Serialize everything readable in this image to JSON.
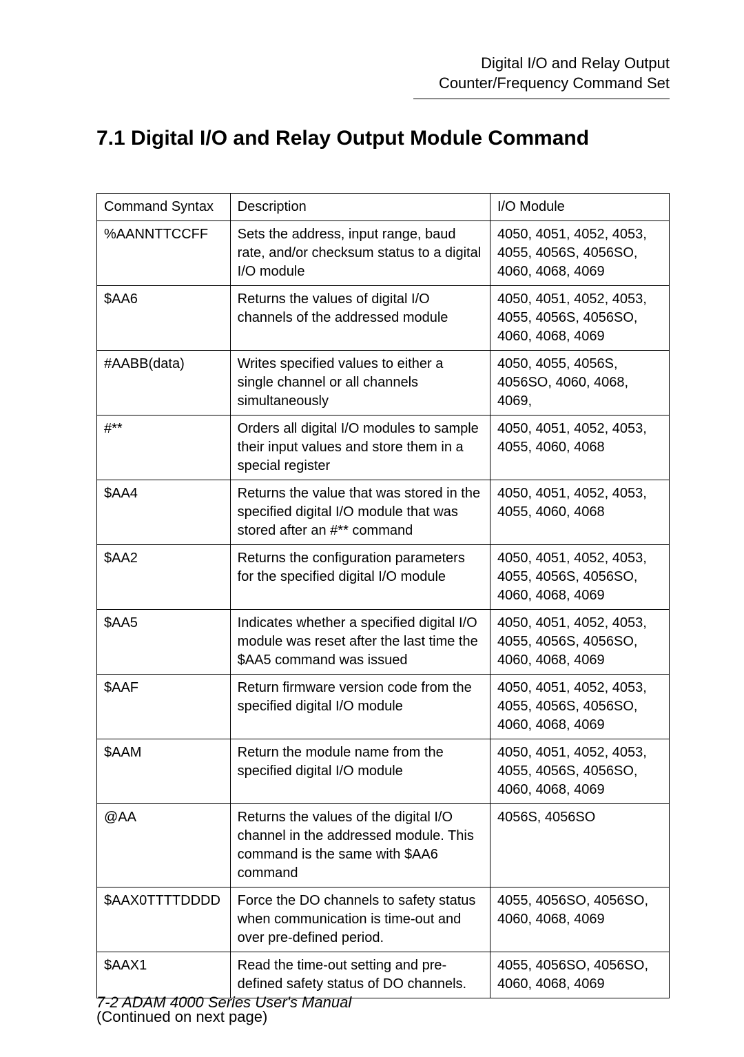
{
  "header": {
    "line1": "Digital I/O and Relay Output",
    "line2": "Counter/Frequency Command Set"
  },
  "section_title": "7.1 Digital I/O and Relay Output Module Command",
  "table": {
    "columns": [
      "Command Syntax",
      "Description",
      "I/O Module"
    ],
    "rows": [
      {
        "syntax": "%AANNTTCCFF",
        "desc": "Sets the address, input range, baud rate, and/or checksum status to a digital I/O module",
        "mod": "4050, 4051, 4052, 4053, 4055, 4056S, 4056SO, 4060, 4068, 4069"
      },
      {
        "syntax": "$AA6",
        "desc": "Returns the values of digital I/O channels of the addressed module",
        "mod": "4050, 4051, 4052, 4053, 4055, 4056S, 4056SO, 4060, 4068, 4069"
      },
      {
        "syntax": "#AABB(data)",
        "desc": "Writes specified values to either a single channel or all channels simultaneously",
        "mod": "4050, 4055, 4056S, 4056SO, 4060, 4068, 4069,"
      },
      {
        "syntax": "#**",
        "desc": "Orders all digital I/O modules to sample their input values and store them in a special register",
        "mod": "4050, 4051, 4052, 4053, 4055, 4060, 4068"
      },
      {
        "syntax": "$AA4",
        "desc": "Returns the value that was stored in the specified digital I/O module that was stored after an #** command",
        "mod": "4050, 4051, 4052, 4053, 4055, 4060, 4068"
      },
      {
        "syntax": "$AA2",
        "desc": "Returns the configuration parameters for the specified digital I/O module",
        "mod": "4050, 4051, 4052, 4053, 4055, 4056S, 4056SO, 4060, 4068, 4069"
      },
      {
        "syntax": "$AA5",
        "desc": "Indicates whether a specified digital I/O module was reset after the last time the $AA5 command was issued",
        "mod": "4050, 4051, 4052, 4053, 4055, 4056S, 4056SO, 4060, 4068, 4069"
      },
      {
        "syntax": "$AAF",
        "desc": "Return firmware version code from the specified digital I/O module",
        "mod": "4050, 4051, 4052, 4053, 4055, 4056S, 4056SO, 4060, 4068, 4069"
      },
      {
        "syntax": "$AAM",
        "desc": "Return the module name from the specified digital I/O module",
        "mod": "4050, 4051, 4052, 4053, 4055, 4056S, 4056SO, 4060, 4068, 4069"
      },
      {
        "syntax": "@AA",
        "desc": "Returns the values of the digital I/O channel in the addressed module. This command is the same with $AA6 command",
        "mod": "4056S, 4056SO"
      },
      {
        "syntax": "$AAX0TTTTDDDD",
        "desc": "Force the DO channels to safety status when communication is time-out and over pre-defined period.",
        "mod": "4055, 4056SO, 4056SO, 4060, 4068, 4069"
      },
      {
        "syntax": "$AAX1",
        "desc": "Read the time-out setting and pre-defined safety status of DO channels.",
        "mod": "4055, 4056SO, 4056SO, 4060, 4068, 4069"
      }
    ]
  },
  "continued": "(Continued on next page)",
  "footer": "7-2 ADAM 4000 Series User's Manual"
}
